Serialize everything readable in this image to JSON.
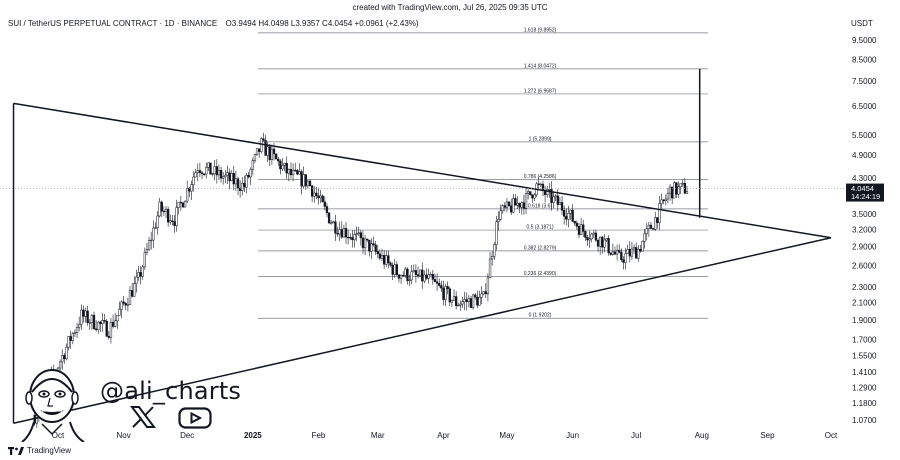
{
  "created": "created with TradingView.com, Jul 26, 2025 09:35 UTC",
  "header": {
    "symbol": "SUI / TetherUS PERPETUAL CONTRACT · 1D · BINANCE",
    "open": "O3.9494",
    "high": "H4.0498",
    "low": "L3.9357",
    "close": "C4.0454",
    "change": "+0.0961 (+2.43%)"
  },
  "currency": "USDT",
  "footer_brand": "TradingView",
  "watermark": {
    "handle": "@ali_charts",
    "icons": [
      "x-icon",
      "youtube-icon",
      "avatar-icon"
    ]
  },
  "price_label": {
    "value": "4.0454",
    "countdown": "14:24:19",
    "color": "#131722"
  },
  "colors": {
    "up": "#ffffff",
    "down": "#131722",
    "line": "#131722",
    "fib": "#787b86"
  },
  "chart_data": {
    "type": "candlestick",
    "scale": "log",
    "y_ticks": [
      "9.5000",
      "8.5000",
      "7.5000",
      "6.5000",
      "5.5000",
      "4.9000",
      "4.3000",
      "3.5000",
      "3.2000",
      "2.9000",
      "2.6000",
      "2.3000",
      "2.1000",
      "1.9000",
      "1.7000",
      "1.5500",
      "1.4100",
      "1.2900",
      "1.1800",
      "1.0700"
    ],
    "x_ticks": [
      "Oct",
      "Nov",
      "Dec",
      "2025",
      "Feb",
      "Mar",
      "Apr",
      "May",
      "Jun",
      "Jul",
      "Aug",
      "Sep",
      "Oct"
    ],
    "fib_levels": [
      {
        "label": "1.618 (9.8952)",
        "value": 9.8952
      },
      {
        "label": "1.414 (8.0472)",
        "value": 8.0472
      },
      {
        "label": "1.272 (6.9687)",
        "value": 6.9687
      },
      {
        "label": "1 (5.2899)",
        "value": 5.2899
      },
      {
        "label": "0.786 (4.2586)",
        "value": 4.2586
      },
      {
        "label": "0.618 (3.6)",
        "value": 3.6
      },
      {
        "label": "0.5 (3.1871)",
        "value": 3.1871
      },
      {
        "label": "0.382 (2.8279)",
        "value": 2.8279
      },
      {
        "label": "0.236 (2.4390)",
        "value": 2.439
      },
      {
        "label": "0 (1.9202)",
        "value": 1.9202
      }
    ],
    "triangle": {
      "upper": [
        [
          "2024-09-10",
          6.6
        ],
        [
          "2025-10-01",
          3.05
        ]
      ],
      "lower": [
        [
          "2024-09-10",
          1.05
        ],
        [
          "2025-10-01",
          3.05
        ]
      ],
      "left_edge": [
        [
          "2024-09-10",
          1.05
        ],
        [
          "2024-09-10",
          6.6
        ]
      ]
    },
    "target_line": [
      [
        "2025-07-31",
        3.42
      ],
      [
        "2025-07-31",
        8.05
      ]
    ],
    "close_price": 4.0454,
    "monthly_ohlc": [
      {
        "month": "2024-09",
        "o": 0.95,
        "h": 1.85,
        "l": 0.9,
        "c": 1.7
      },
      {
        "month": "2024-10",
        "o": 1.7,
        "h": 2.4,
        "l": 1.55,
        "c": 1.95
      },
      {
        "month": "2024-11",
        "o": 1.95,
        "h": 3.95,
        "l": 1.8,
        "c": 3.6
      },
      {
        "month": "2024-12",
        "o": 3.6,
        "h": 5.0,
        "l": 3.6,
        "c": 4.1
      },
      {
        "month": "2025-01",
        "o": 4.1,
        "h": 5.35,
        "l": 3.4,
        "c": 4.25
      },
      {
        "month": "2025-02",
        "o": 4.25,
        "h": 4.3,
        "l": 2.4,
        "c": 2.8
      },
      {
        "month": "2025-03",
        "o": 2.8,
        "h": 2.9,
        "l": 2.1,
        "c": 2.35
      },
      {
        "month": "2025-04",
        "o": 2.35,
        "h": 3.6,
        "l": 1.75,
        "c": 3.35
      },
      {
        "month": "2025-05",
        "o": 3.35,
        "h": 4.3,
        "l": 3.1,
        "c": 3.3
      },
      {
        "month": "2025-06",
        "o": 3.3,
        "h": 3.4,
        "l": 2.3,
        "c": 2.85
      },
      {
        "month": "2025-07",
        "o": 2.85,
        "h": 4.4,
        "l": 2.7,
        "c": 4.05
      }
    ]
  }
}
